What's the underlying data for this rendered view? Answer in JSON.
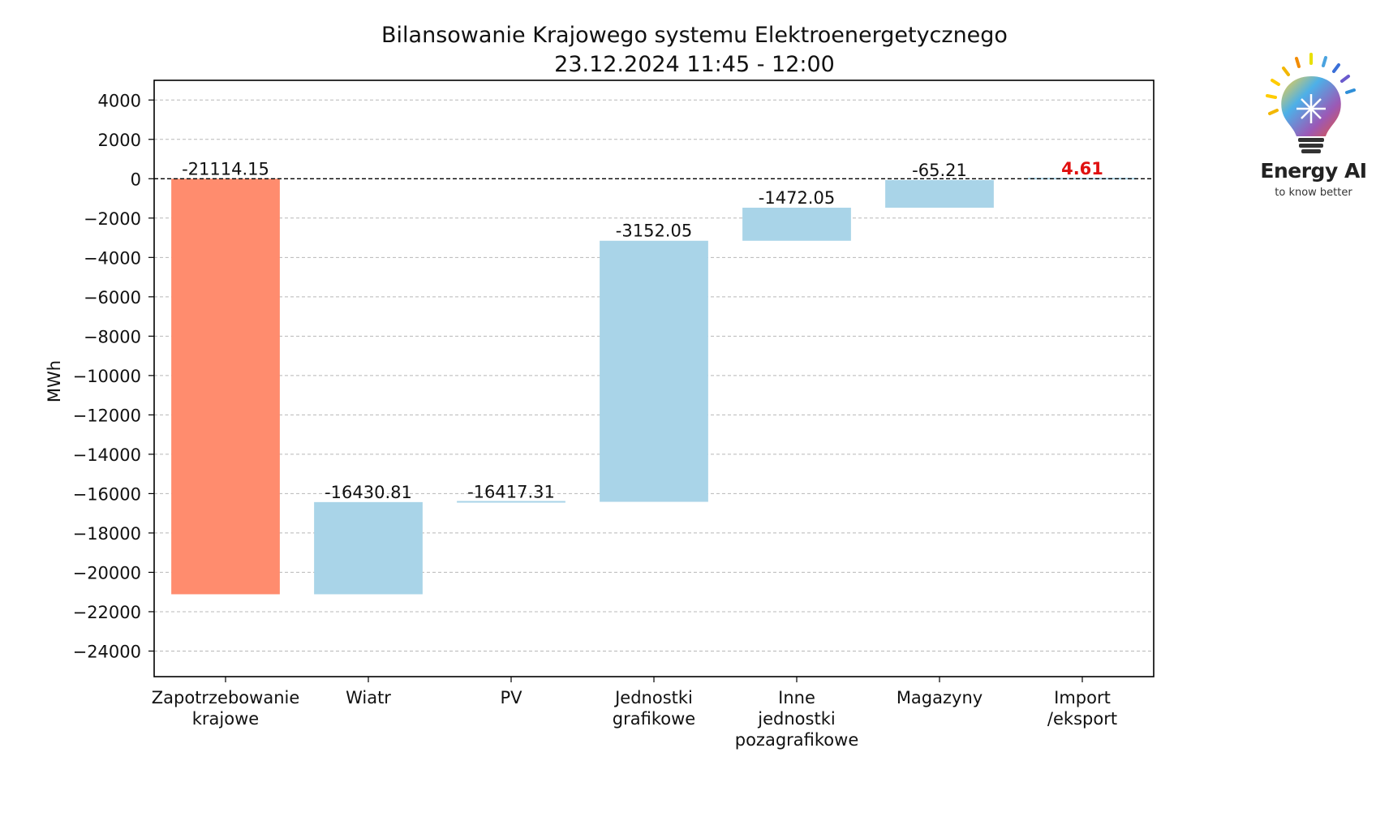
{
  "title": "Bilansowanie Krajowego systemu Elektroenergetycznego",
  "subtitle": "23.12.2024 11:45 - 12:00",
  "logo": {
    "name": "Energy AI",
    "tagline": "to know better",
    "icon": "lightbulb-logo-icon"
  },
  "colors": {
    "first_bar": "#ff8c6e",
    "other_bars": "#a9d4e8",
    "positive_label": "#e01010"
  },
  "chart_data": {
    "type": "bar",
    "subtype": "waterfall",
    "ylabel": "MWh",
    "xlabel": "",
    "ylim": [
      -25300,
      5000
    ],
    "yticks": [
      4000,
      2000,
      0,
      -2000,
      -4000,
      -6000,
      -8000,
      -10000,
      -12000,
      -14000,
      -16000,
      -18000,
      -20000,
      -22000,
      -24000
    ],
    "ytick_labels": [
      "4000",
      "2000",
      "0",
      "−2000",
      "−4000",
      "−6000",
      "−8000",
      "−10000",
      "−12000",
      "−14000",
      "−16000",
      "−18000",
      "−20000",
      "−22000",
      "−24000"
    ],
    "grid": true,
    "zero_line": "dashed",
    "categories": [
      [
        "Zapotrzebowanie",
        "krajowe"
      ],
      [
        "Wiatr"
      ],
      [
        "PV"
      ],
      [
        "Jednostki",
        "grafikowe"
      ],
      [
        "Inne",
        "jednostki",
        "pozagrafikowe"
      ],
      [
        "Magazyny"
      ],
      [
        "Import",
        "/eksport"
      ]
    ],
    "bars": [
      {
        "bottom": -21114.15,
        "top": 0,
        "label": "-21114.15",
        "highlight": false
      },
      {
        "bottom": -21114.15,
        "top": -16430.81,
        "label": "-16430.81",
        "highlight": false
      },
      {
        "bottom": -16430.81,
        "top": -16417.31,
        "label": "-16417.31",
        "highlight": false
      },
      {
        "bottom": -16417.31,
        "top": -3152.05,
        "label": "-3152.05",
        "highlight": false
      },
      {
        "bottom": -3152.05,
        "top": -1472.05,
        "label": "-1472.05",
        "highlight": false
      },
      {
        "bottom": -1472.05,
        "top": -65.21,
        "label": "-65.21",
        "highlight": false
      },
      {
        "bottom": -65.21,
        "top": 4.61,
        "label": "4.61",
        "highlight": true
      }
    ]
  }
}
